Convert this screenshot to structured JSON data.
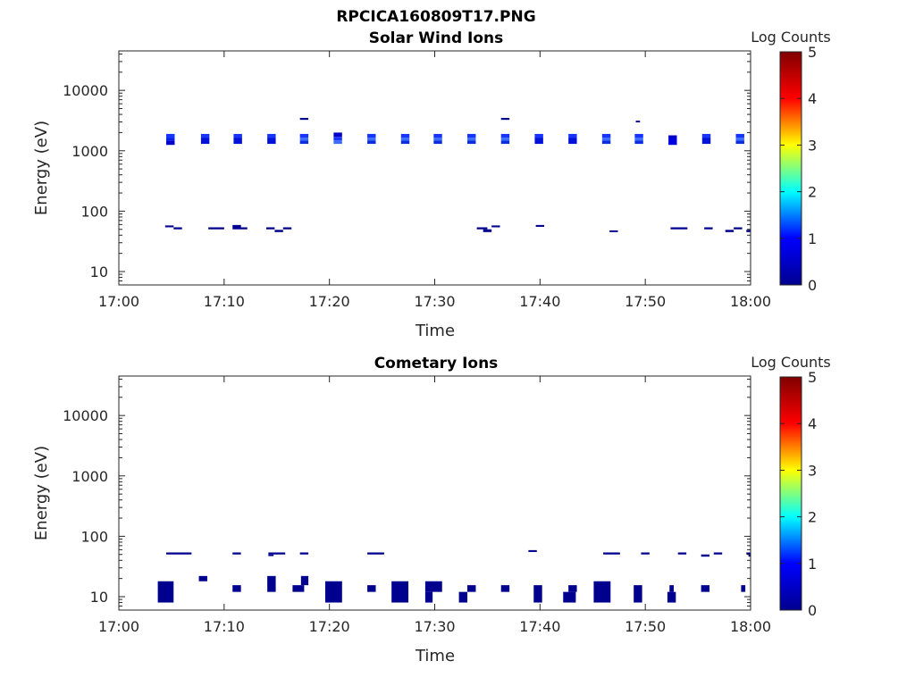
{
  "figure_title": "RPCICA160809T17.PNG",
  "colors": {
    "fill_low": "#00008F",
    "axes": "#262626",
    "background": "#ffffff"
  },
  "colorbar": {
    "label": "Log Counts",
    "ticks": [
      "0",
      "1",
      "2",
      "3",
      "4",
      "5"
    ],
    "stops": [
      "#00008F",
      "#0000FF",
      "#00FFFF",
      "#FFFF00",
      "#FF0000",
      "#800000"
    ]
  },
  "chart_data": [
    {
      "type": "heatmap",
      "title": "Solar Wind Ions",
      "xlabel": "Time",
      "ylabel": "Energy (eV)",
      "x_ticks": [
        "17:00",
        "17:10",
        "17:20",
        "17:30",
        "17:40",
        "17:50",
        "18:00"
      ],
      "xlim_minutes": [
        0,
        60
      ],
      "ylim": [
        6,
        45000
      ],
      "y_scale": "log",
      "y_ticks": [
        "10",
        "100",
        "1000",
        "10000"
      ],
      "y_tick_values": [
        10,
        100,
        1000,
        10000
      ],
      "cells": [
        {
          "t0": 4.5,
          "t1": 5.3,
          "e0": 1650,
          "e1": 1900,
          "c": "#1733ff"
        },
        {
          "t0": 4.5,
          "t1": 5.3,
          "e0": 1480,
          "e1": 1650,
          "c": "#0022e8"
        },
        {
          "t0": 4.5,
          "t1": 5.3,
          "e0": 1250,
          "e1": 1480,
          "c": "#0000c8"
        },
        {
          "t0": 7.8,
          "t1": 8.6,
          "e0": 1650,
          "e1": 1900,
          "c": "#1733ff"
        },
        {
          "t0": 7.8,
          "t1": 8.6,
          "e0": 1300,
          "e1": 1650,
          "c": "#0011d8"
        },
        {
          "t0": 10.9,
          "t1": 11.7,
          "e0": 1650,
          "e1": 1900,
          "c": "#1733ff"
        },
        {
          "t0": 10.9,
          "t1": 11.7,
          "e0": 1300,
          "e1": 1650,
          "c": "#0011d8"
        },
        {
          "t0": 14.1,
          "t1": 14.9,
          "e0": 1650,
          "e1": 1900,
          "c": "#1733ff"
        },
        {
          "t0": 14.1,
          "t1": 14.9,
          "e0": 1300,
          "e1": 1650,
          "c": "#0011d8"
        },
        {
          "t0": 17.2,
          "t1": 18.0,
          "e0": 3250,
          "e1": 3500,
          "c": "#00008F"
        },
        {
          "t0": 17.2,
          "t1": 18.0,
          "e0": 1650,
          "e1": 1900,
          "c": "#1733ff"
        },
        {
          "t0": 17.2,
          "t1": 18.0,
          "e0": 1480,
          "e1": 1650,
          "c": "#3a6cff"
        },
        {
          "t0": 17.2,
          "t1": 18.0,
          "e0": 1300,
          "e1": 1480,
          "c": "#0a2de0"
        },
        {
          "t0": 20.4,
          "t1": 21.2,
          "e0": 1700,
          "e1": 2000,
          "c": "#0000c8"
        },
        {
          "t0": 20.4,
          "t1": 21.2,
          "e0": 1480,
          "e1": 1700,
          "c": "#1733ff"
        },
        {
          "t0": 20.4,
          "t1": 21.2,
          "e0": 1300,
          "e1": 1480,
          "c": "#3a6cff"
        },
        {
          "t0": 23.6,
          "t1": 24.4,
          "e0": 1650,
          "e1": 1900,
          "c": "#1733ff"
        },
        {
          "t0": 23.6,
          "t1": 24.4,
          "e0": 1480,
          "e1": 1650,
          "c": "#3a6cff"
        },
        {
          "t0": 23.6,
          "t1": 24.4,
          "e0": 1300,
          "e1": 1480,
          "c": "#0a2de0"
        },
        {
          "t0": 26.8,
          "t1": 27.6,
          "e0": 1650,
          "e1": 1900,
          "c": "#1733ff"
        },
        {
          "t0": 26.8,
          "t1": 27.6,
          "e0": 1480,
          "e1": 1650,
          "c": "#3a6cff"
        },
        {
          "t0": 26.8,
          "t1": 27.6,
          "e0": 1300,
          "e1": 1480,
          "c": "#0a2de0"
        },
        {
          "t0": 29.9,
          "t1": 30.7,
          "e0": 1650,
          "e1": 1900,
          "c": "#1733ff"
        },
        {
          "t0": 29.9,
          "t1": 30.7,
          "e0": 1480,
          "e1": 1650,
          "c": "#3a6cff"
        },
        {
          "t0": 29.9,
          "t1": 30.7,
          "e0": 1300,
          "e1": 1480,
          "c": "#0a2de0"
        },
        {
          "t0": 33.1,
          "t1": 33.9,
          "e0": 1650,
          "e1": 1900,
          "c": "#1733ff"
        },
        {
          "t0": 33.1,
          "t1": 33.9,
          "e0": 1480,
          "e1": 1650,
          "c": "#3a6cff"
        },
        {
          "t0": 33.1,
          "t1": 33.9,
          "e0": 1300,
          "e1": 1480,
          "c": "#0a2de0"
        },
        {
          "t0": 36.3,
          "t1": 37.1,
          "e0": 3250,
          "e1": 3500,
          "c": "#00008F"
        },
        {
          "t0": 36.3,
          "t1": 37.1,
          "e0": 1650,
          "e1": 1900,
          "c": "#1733ff"
        },
        {
          "t0": 36.3,
          "t1": 37.1,
          "e0": 1480,
          "e1": 1650,
          "c": "#3a6cff"
        },
        {
          "t0": 36.3,
          "t1": 37.1,
          "e0": 1300,
          "e1": 1480,
          "c": "#0a2de0"
        },
        {
          "t0": 39.5,
          "t1": 40.3,
          "e0": 1650,
          "e1": 1900,
          "c": "#1733ff"
        },
        {
          "t0": 39.5,
          "t1": 40.3,
          "e0": 1300,
          "e1": 1650,
          "c": "#0011d8"
        },
        {
          "t0": 42.7,
          "t1": 43.5,
          "e0": 1650,
          "e1": 1900,
          "c": "#1733ff"
        },
        {
          "t0": 42.7,
          "t1": 43.5,
          "e0": 1300,
          "e1": 1650,
          "c": "#0011d8"
        },
        {
          "t0": 45.9,
          "t1": 46.7,
          "e0": 1650,
          "e1": 1900,
          "c": "#1733ff"
        },
        {
          "t0": 45.9,
          "t1": 46.7,
          "e0": 1480,
          "e1": 1650,
          "c": "#3a6cff"
        },
        {
          "t0": 45.9,
          "t1": 46.7,
          "e0": 1300,
          "e1": 1480,
          "c": "#0a2de0"
        },
        {
          "t0": 49.1,
          "t1": 49.5,
          "e0": 2950,
          "e1": 3150,
          "c": "#00008F"
        },
        {
          "t0": 49.0,
          "t1": 49.8,
          "e0": 1650,
          "e1": 1900,
          "c": "#1733ff"
        },
        {
          "t0": 49.0,
          "t1": 49.8,
          "e0": 1480,
          "e1": 1650,
          "c": "#3a6cff"
        },
        {
          "t0": 49.0,
          "t1": 49.8,
          "e0": 1300,
          "e1": 1480,
          "c": "#0a2de0"
        },
        {
          "t0": 52.2,
          "t1": 53.0,
          "e0": 1600,
          "e1": 1800,
          "c": "#0000c8"
        },
        {
          "t0": 52.2,
          "t1": 53.0,
          "e0": 1250,
          "e1": 1600,
          "c": "#0000e0"
        },
        {
          "t0": 55.4,
          "t1": 56.2,
          "e0": 1650,
          "e1": 1900,
          "c": "#1733ff"
        },
        {
          "t0": 55.4,
          "t1": 56.2,
          "e0": 1300,
          "e1": 1650,
          "c": "#0011d8"
        },
        {
          "t0": 58.6,
          "t1": 59.4,
          "e0": 1650,
          "e1": 1900,
          "c": "#1733ff"
        },
        {
          "t0": 58.6,
          "t1": 59.4,
          "e0": 1480,
          "e1": 1650,
          "c": "#3a6cff"
        },
        {
          "t0": 58.6,
          "t1": 59.4,
          "e0": 1300,
          "e1": 1480,
          "c": "#0a2de0"
        },
        {
          "t0": 4.4,
          "t1": 5.2,
          "e0": 54,
          "e1": 58,
          "c": "#00008F"
        },
        {
          "t0": 5.2,
          "t1": 6.0,
          "e0": 50,
          "e1": 54,
          "c": "#00008F"
        },
        {
          "t0": 8.5,
          "t1": 10.0,
          "e0": 50,
          "e1": 54,
          "c": "#00008F"
        },
        {
          "t0": 10.8,
          "t1": 11.6,
          "e0": 54,
          "e1": 59,
          "c": "#00008F"
        },
        {
          "t0": 10.8,
          "t1": 12.2,
          "e0": 50,
          "e1": 54,
          "c": "#00008F"
        },
        {
          "t0": 14.0,
          "t1": 14.8,
          "e0": 50,
          "e1": 54,
          "c": "#00008F"
        },
        {
          "t0": 14.8,
          "t1": 15.6,
          "e0": 45,
          "e1": 49,
          "c": "#00008F"
        },
        {
          "t0": 15.6,
          "t1": 16.4,
          "e0": 50,
          "e1": 54,
          "c": "#00008F"
        },
        {
          "t0": 34.0,
          "t1": 35.0,
          "e0": 50,
          "e1": 54,
          "c": "#00008F"
        },
        {
          "t0": 34.6,
          "t1": 35.4,
          "e0": 45,
          "e1": 50,
          "c": "#00008F"
        },
        {
          "t0": 35.4,
          "t1": 36.2,
          "e0": 54,
          "e1": 58,
          "c": "#00008F"
        },
        {
          "t0": 39.6,
          "t1": 40.4,
          "e0": 55,
          "e1": 59,
          "c": "#00008F"
        },
        {
          "t0": 46.6,
          "t1": 47.4,
          "e0": 45,
          "e1": 48,
          "c": "#00008F"
        },
        {
          "t0": 52.4,
          "t1": 54.0,
          "e0": 50,
          "e1": 54,
          "c": "#00008F"
        },
        {
          "t0": 55.6,
          "t1": 56.4,
          "e0": 50,
          "e1": 54,
          "c": "#00008F"
        },
        {
          "t0": 57.6,
          "t1": 58.4,
          "e0": 45,
          "e1": 49,
          "c": "#00008F"
        },
        {
          "t0": 58.4,
          "t1": 59.2,
          "e0": 50,
          "e1": 54,
          "c": "#00008F"
        },
        {
          "t0": 59.6,
          "t1": 60.0,
          "e0": 45,
          "e1": 49,
          "c": "#00008F"
        }
      ]
    },
    {
      "type": "heatmap",
      "title": "Cometary Ions",
      "xlabel": "Time",
      "ylabel": "Energy (eV)",
      "x_ticks": [
        "17:00",
        "17:10",
        "17:20",
        "17:30",
        "17:40",
        "17:50",
        "18:00"
      ],
      "xlim_minutes": [
        0,
        60
      ],
      "ylim": [
        6,
        45000
      ],
      "y_scale": "log",
      "y_ticks": [
        "10",
        "100",
        "1000",
        "10000"
      ],
      "y_tick_values": [
        10,
        100,
        1000,
        10000
      ],
      "cells": [
        {
          "t0": 4.5,
          "t1": 6.9,
          "e0": 50,
          "e1": 54,
          "c": "#00008F"
        },
        {
          "t0": 10.8,
          "t1": 11.6,
          "e0": 50,
          "e1": 54,
          "c": "#00008F"
        },
        {
          "t0": 14.2,
          "t1": 15.8,
          "e0": 50,
          "e1": 54,
          "c": "#00008F"
        },
        {
          "t0": 14.2,
          "t1": 14.7,
          "e0": 47,
          "e1": 50,
          "c": "#00008F"
        },
        {
          "t0": 17.2,
          "t1": 18.0,
          "e0": 50,
          "e1": 54,
          "c": "#00008F"
        },
        {
          "t0": 23.6,
          "t1": 25.2,
          "e0": 50,
          "e1": 54,
          "c": "#00008F"
        },
        {
          "t0": 38.9,
          "t1": 39.7,
          "e0": 55,
          "e1": 59,
          "c": "#00008F"
        },
        {
          "t0": 46.0,
          "t1": 47.6,
          "e0": 50,
          "e1": 54,
          "c": "#00008F"
        },
        {
          "t0": 49.6,
          "t1": 50.4,
          "e0": 50,
          "e1": 54,
          "c": "#00008F"
        },
        {
          "t0": 53.1,
          "t1": 53.9,
          "e0": 50,
          "e1": 54,
          "c": "#00008F"
        },
        {
          "t0": 55.3,
          "t1": 56.1,
          "e0": 46,
          "e1": 50,
          "c": "#00008F"
        },
        {
          "t0": 56.5,
          "t1": 57.3,
          "e0": 50,
          "e1": 54,
          "c": "#00008F"
        },
        {
          "t0": 59.6,
          "t1": 60.0,
          "e0": 50,
          "e1": 54,
          "c": "#00008F"
        },
        {
          "t0": 59.8,
          "t1": 60.0,
          "e0": 46,
          "e1": 50,
          "c": "#00008F"
        },
        {
          "t0": 3.7,
          "t1": 5.2,
          "e0": 8,
          "e1": 18,
          "c": "#00008F"
        },
        {
          "t0": 7.6,
          "t1": 8.4,
          "e0": 18,
          "e1": 22,
          "c": "#00008F"
        },
        {
          "t0": 10.8,
          "t1": 11.6,
          "e0": 12,
          "e1": 15.5,
          "c": "#00008F"
        },
        {
          "t0": 14.1,
          "t1": 14.9,
          "e0": 12,
          "e1": 22,
          "c": "#00008F"
        },
        {
          "t0": 16.5,
          "t1": 17.6,
          "e0": 12,
          "e1": 15.5,
          "c": "#00008F"
        },
        {
          "t0": 17.3,
          "t1": 18.0,
          "e0": 15.5,
          "e1": 22,
          "c": "#00008F"
        },
        {
          "t0": 19.6,
          "t1": 21.2,
          "e0": 8,
          "e1": 18,
          "c": "#00008F"
        },
        {
          "t0": 23.6,
          "t1": 24.4,
          "e0": 12,
          "e1": 15.5,
          "c": "#00008F"
        },
        {
          "t0": 25.9,
          "t1": 27.5,
          "e0": 8,
          "e1": 18,
          "c": "#00008F"
        },
        {
          "t0": 29.1,
          "t1": 30.7,
          "e0": 12,
          "e1": 18,
          "c": "#00008F"
        },
        {
          "t0": 29.1,
          "t1": 29.8,
          "e0": 8,
          "e1": 12,
          "c": "#00008F"
        },
        {
          "t0": 32.3,
          "t1": 33.1,
          "e0": 8,
          "e1": 12,
          "c": "#00008F"
        },
        {
          "t0": 33.1,
          "t1": 33.9,
          "e0": 12,
          "e1": 15.5,
          "c": "#00008F"
        },
        {
          "t0": 36.3,
          "t1": 37.1,
          "e0": 12,
          "e1": 15.5,
          "c": "#00008F"
        },
        {
          "t0": 39.4,
          "t1": 40.2,
          "e0": 8,
          "e1": 15.5,
          "c": "#00008F"
        },
        {
          "t0": 42.2,
          "t1": 43.4,
          "e0": 8,
          "e1": 12,
          "c": "#00008F"
        },
        {
          "t0": 42.7,
          "t1": 43.5,
          "e0": 12,
          "e1": 15.5,
          "c": "#00008F"
        },
        {
          "t0": 45.1,
          "t1": 46.7,
          "e0": 8,
          "e1": 18,
          "c": "#00008F"
        },
        {
          "t0": 48.9,
          "t1": 49.7,
          "e0": 8,
          "e1": 15.5,
          "c": "#00008F"
        },
        {
          "t0": 52.1,
          "t1": 52.9,
          "e0": 8,
          "e1": 12,
          "c": "#00008F"
        },
        {
          "t0": 52.3,
          "t1": 52.7,
          "e0": 12,
          "e1": 15.5,
          "c": "#00008F"
        },
        {
          "t0": 55.3,
          "t1": 56.1,
          "e0": 12,
          "e1": 15.5,
          "c": "#00008F"
        },
        {
          "t0": 59.1,
          "t1": 59.5,
          "e0": 12,
          "e1": 15.5,
          "c": "#00008F"
        }
      ]
    }
  ]
}
